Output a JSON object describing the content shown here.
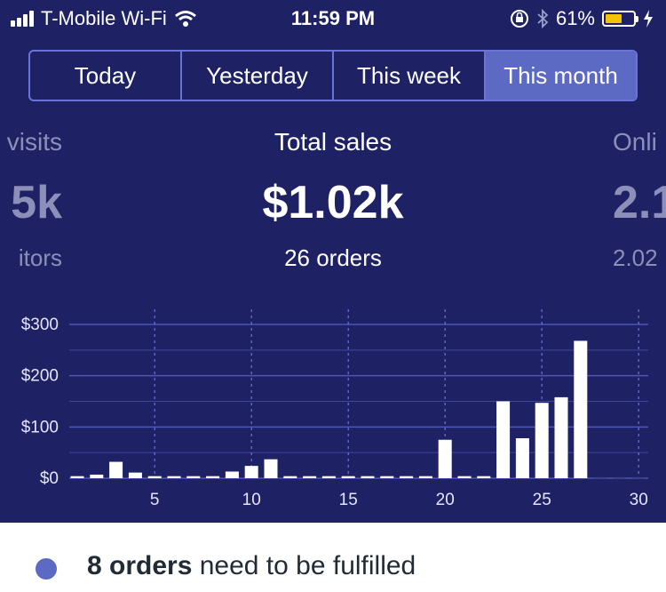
{
  "status_bar": {
    "carrier": "T-Mobile Wi-Fi",
    "time": "11:59 PM",
    "battery_percent": "61%",
    "battery_level": 0.61
  },
  "segments": [
    {
      "label": "Today",
      "active": false
    },
    {
      "label": "Yesterday",
      "active": false
    },
    {
      "label": "This week",
      "active": false
    },
    {
      "label": "This month",
      "active": true
    }
  ],
  "metrics": {
    "left": {
      "title": "visits",
      "value": "5k",
      "sub": "itors"
    },
    "center": {
      "title": "Total sales",
      "value": "$1.02k",
      "sub": "26 orders"
    },
    "right": {
      "title": "Onli",
      "value": "2.1",
      "sub": "2.02"
    }
  },
  "chart_data": {
    "type": "bar",
    "x": [
      1,
      2,
      3,
      4,
      5,
      6,
      7,
      8,
      9,
      10,
      11,
      12,
      13,
      14,
      15,
      16,
      17,
      18,
      19,
      20,
      21,
      22,
      23,
      24,
      25,
      26,
      27,
      28,
      29,
      30
    ],
    "values": [
      4,
      7,
      32,
      11,
      4,
      4,
      4,
      4,
      13,
      24,
      37,
      4,
      4,
      4,
      4,
      4,
      4,
      4,
      4,
      75,
      4,
      4,
      150,
      78,
      147,
      158,
      268,
      2,
      2,
      2
    ],
    "x_ticks": [
      "5",
      "10",
      "15",
      "20",
      "25",
      "30"
    ],
    "y_ticks": [
      "$0",
      "$100",
      "$200",
      "$300"
    ],
    "ylim": [
      0,
      300
    ],
    "xlim": [
      1,
      30
    ],
    "grid": true,
    "colors": {
      "bars": "#ffffff",
      "grid": "#4e56b6",
      "background": "#1f2165"
    }
  },
  "footer": {
    "count_text": "8 orders",
    "rest_text": " need to be fulfilled",
    "dot_color": "#5c6ac4"
  }
}
